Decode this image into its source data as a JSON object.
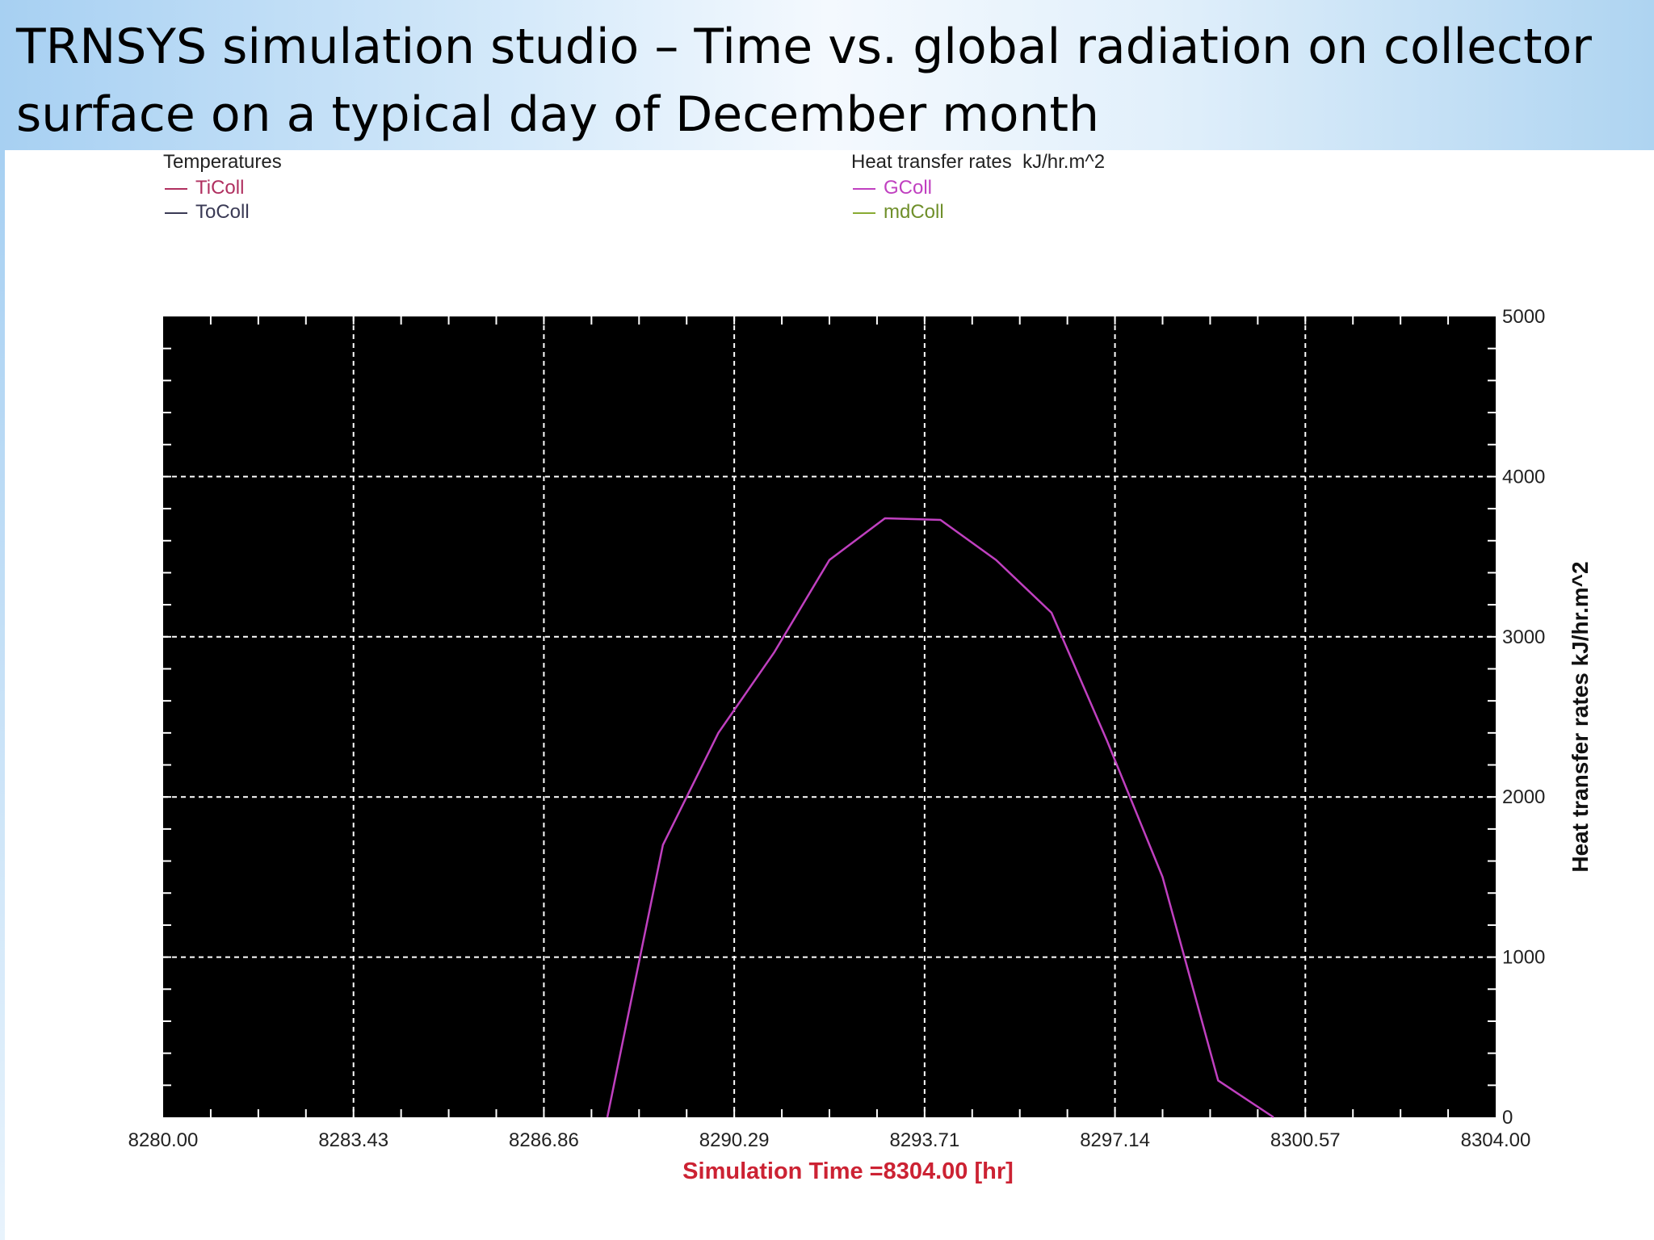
{
  "slide": {
    "title": "TRNSYS simulation studio – Time vs. global radiation on collector surface on a typical day of December month"
  },
  "legends": [
    {
      "title": "Temperatures",
      "items": [
        {
          "name": "TiColl",
          "color": "#b03060"
        },
        {
          "name": "ToColl",
          "color": "#3a3a55"
        }
      ]
    },
    {
      "title": "Heat transfer rates  kJ/hr.m^2",
      "items": [
        {
          "name": "GColl",
          "color": "#c040c0"
        },
        {
          "name": "mdColl",
          "color": "#88aa33"
        }
      ]
    }
  ],
  "chart_data": {
    "type": "line",
    "xlabel": "Simulation Time =8304.00 [hr]",
    "ylabel": "Heat transfer rates  kJ/hr.m^2",
    "xlim": [
      8280.0,
      8304.0
    ],
    "ylim": [
      0,
      5000
    ],
    "x_ticks": [
      "8280.00",
      "8283.43",
      "8286.86",
      "8290.29",
      "8293.71",
      "8297.14",
      "8300.57",
      "8304.00"
    ],
    "y_ticks": [
      "0",
      "1000",
      "2000",
      "3000",
      "4000",
      "5000"
    ],
    "grid": true,
    "background": "#000000",
    "series": [
      {
        "name": "GColl",
        "color": "#c040c0",
        "points": [
          [
            8288.0,
            0
          ],
          [
            8289.0,
            1700
          ],
          [
            8290.0,
            2400
          ],
          [
            8291.0,
            2900
          ],
          [
            8292.0,
            3480
          ],
          [
            8293.0,
            3740
          ],
          [
            8294.0,
            3730
          ],
          [
            8295.0,
            3480
          ],
          [
            8296.0,
            3150
          ],
          [
            8297.0,
            2350
          ],
          [
            8298.0,
            1500
          ],
          [
            8299.0,
            230
          ],
          [
            8300.0,
            0
          ]
        ]
      }
    ]
  }
}
